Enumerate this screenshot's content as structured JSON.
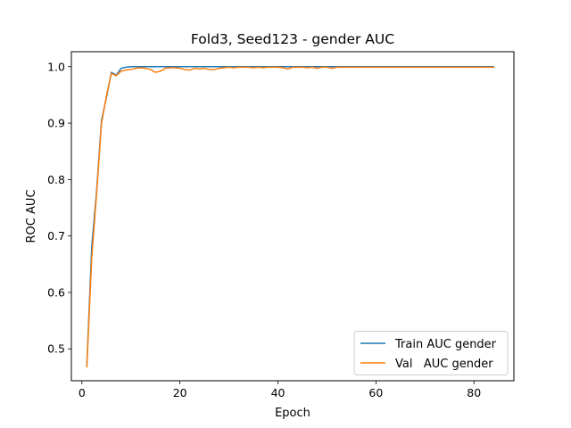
{
  "chart_data": {
    "type": "line",
    "title": "Fold3, Seed123 - gender AUC",
    "xlabel": "Epoch",
    "ylabel": "ROC AUC",
    "xlim": [
      -2.15,
      88.15
    ],
    "ylim": [
      0.4435,
      1.0265
    ],
    "xticks": [
      0,
      20,
      40,
      60,
      80
    ],
    "yticks": [
      0.5,
      0.6,
      0.7,
      0.8,
      0.9,
      1.0
    ],
    "ytick_labels": [
      "0.5",
      "0.6",
      "0.7",
      "0.8",
      "0.9",
      "1.0"
    ],
    "grid": false,
    "legend": {
      "placement": "lower-right"
    },
    "series": [
      {
        "name": "Train AUC gender",
        "color": "#1f77b4",
        "x": [
          1,
          2,
          3,
          4,
          5,
          6,
          7,
          8,
          9,
          10,
          11,
          12,
          13,
          14,
          15,
          16,
          17,
          18,
          19,
          20,
          21,
          22,
          23,
          24,
          25,
          26,
          27,
          28,
          29,
          30,
          31,
          32,
          33,
          34,
          35,
          36,
          37,
          38,
          39,
          40,
          41,
          42,
          43,
          44,
          45,
          46,
          47,
          48,
          49,
          50,
          51,
          52,
          53,
          54,
          55,
          56,
          57,
          58,
          59,
          60,
          61,
          62,
          63,
          64,
          65,
          66,
          67,
          68,
          69,
          70,
          71,
          72,
          73,
          74,
          75,
          76,
          77,
          78,
          79,
          80,
          81,
          82,
          83,
          84
        ],
        "values": [
          0.47,
          0.68,
          0.78,
          0.905,
          0.945,
          0.99,
          0.985,
          0.997,
          0.999,
          1.0,
          1.0,
          1.0,
          1.0,
          1.0,
          1.0,
          1.0,
          1.0,
          1.0,
          1.0,
          1.0,
          1.0,
          1.0,
          1.0,
          1.0,
          1.0,
          1.0,
          1.0,
          1.0,
          1.0,
          1.0,
          1.0,
          1.0,
          1.0,
          1.0,
          1.0,
          1.0,
          1.0,
          1.0,
          1.0,
          1.0,
          1.0,
          1.0,
          1.0,
          1.0,
          1.0,
          1.0,
          1.0,
          1.0,
          1.0,
          1.0,
          1.0,
          1.0,
          1.0,
          1.0,
          1.0,
          1.0,
          1.0,
          1.0,
          1.0,
          1.0,
          1.0,
          1.0,
          1.0,
          1.0,
          1.0,
          1.0,
          1.0,
          1.0,
          1.0,
          1.0,
          1.0,
          1.0,
          1.0,
          1.0,
          1.0,
          1.0,
          1.0,
          1.0,
          1.0,
          1.0,
          1.0,
          1.0,
          1.0,
          1.0
        ]
      },
      {
        "name": "Val   AUC gender",
        "color": "#ff7f0e",
        "x": [
          1,
          2,
          3,
          4,
          5,
          6,
          7,
          8,
          9,
          10,
          11,
          12,
          13,
          14,
          15,
          16,
          17,
          18,
          19,
          20,
          21,
          22,
          23,
          24,
          25,
          26,
          27,
          28,
          29,
          30,
          31,
          32,
          33,
          34,
          35,
          36,
          37,
          38,
          39,
          40,
          41,
          42,
          43,
          44,
          45,
          46,
          47,
          48,
          49,
          50,
          51,
          52,
          53,
          54,
          55,
          56,
          57,
          58,
          59,
          60,
          61,
          62,
          63,
          64,
          65,
          66,
          67,
          68,
          69,
          70,
          71,
          72,
          73,
          74,
          75,
          76,
          77,
          78,
          79,
          80,
          81,
          82,
          83,
          84
        ],
        "values": [
          0.468,
          0.66,
          0.775,
          0.9,
          0.948,
          0.988,
          0.984,
          0.992,
          0.994,
          0.995,
          0.997,
          0.998,
          0.997,
          0.995,
          0.99,
          0.992,
          0.997,
          0.998,
          0.998,
          0.997,
          0.995,
          0.994,
          0.997,
          0.996,
          0.997,
          0.995,
          0.995,
          0.997,
          0.998,
          0.999,
          0.998,
          0.999,
          0.999,
          0.999,
          0.998,
          0.999,
          0.998,
          0.999,
          0.999,
          0.999,
          0.998,
          0.996,
          0.999,
          0.999,
          0.999,
          0.998,
          0.999,
          0.997,
          0.999,
          0.999,
          0.997,
          0.999,
          0.999,
          0.999,
          0.999,
          0.999,
          0.999,
          0.999,
          0.999,
          0.999,
          0.999,
          0.999,
          0.999,
          0.999,
          0.999,
          0.999,
          0.999,
          0.999,
          0.999,
          0.999,
          0.999,
          0.999,
          0.999,
          0.999,
          0.999,
          0.999,
          0.999,
          0.999,
          0.999,
          0.999,
          0.999,
          0.999,
          0.999,
          0.999
        ]
      }
    ]
  }
}
